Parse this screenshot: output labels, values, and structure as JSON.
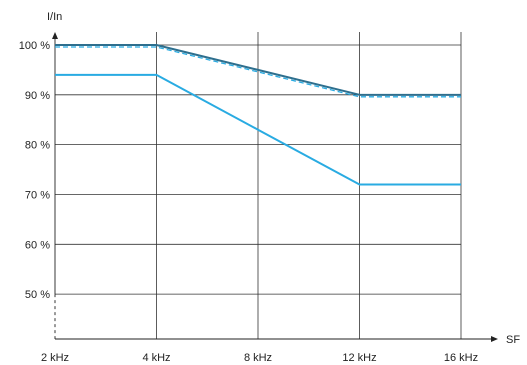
{
  "chart_data": {
    "type": "line",
    "title": "",
    "xlabel": "SF",
    "ylabel": "I/In",
    "x_categories": [
      "2 kHz",
      "4 kHz",
      "8 kHz",
      "12 kHz",
      "16 kHz"
    ],
    "y_ticks": [
      50,
      60,
      70,
      80,
      90,
      100
    ],
    "y_tick_labels": [
      "50 %",
      "60 %",
      "70 %",
      "80 %",
      "90 %",
      "100 %"
    ],
    "ylim": [
      41,
      101
    ],
    "grid": true,
    "legend": "none",
    "series": [
      {
        "style": "solid",
        "color": "#2e6f8e",
        "values": [
          100,
          100,
          95,
          90,
          90
        ]
      },
      {
        "style": "dashed",
        "color": "#29abe2",
        "values": [
          99.6,
          99.6,
          94.6,
          89.6,
          89.6
        ]
      },
      {
        "style": "solid",
        "color": "#29abe2",
        "values": [
          94,
          94,
          83,
          72,
          72
        ]
      }
    ]
  }
}
